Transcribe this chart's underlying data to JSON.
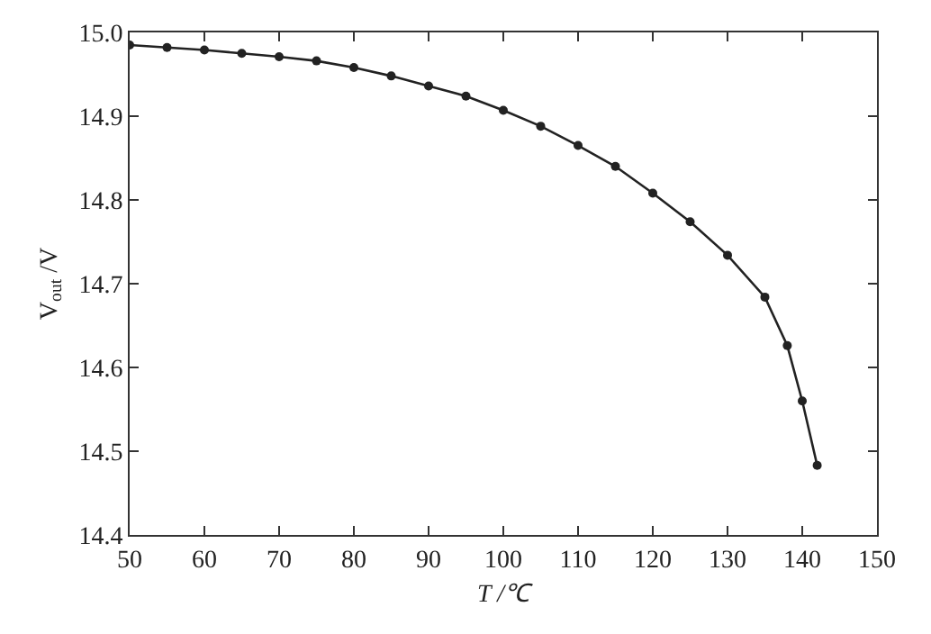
{
  "chart_data": {
    "type": "line",
    "xlabel": "T /℃",
    "ylabel": "V$_{out}$ /V",
    "x": [
      50,
      55,
      60,
      65,
      70,
      75,
      80,
      85,
      90,
      95,
      100,
      105,
      110,
      115,
      120,
      125,
      130,
      135,
      138,
      140,
      142
    ],
    "series": [
      {
        "color": "#222222",
        "values": [
          14.985,
          14.982,
          14.979,
          14.975,
          14.971,
          14.966,
          14.958,
          14.948,
          14.936,
          14.924,
          14.907,
          14.888,
          14.865,
          14.84,
          14.808,
          14.774,
          14.734,
          14.684,
          14.626,
          14.56,
          14.483
        ]
      }
    ],
    "xlim": [
      50,
      150
    ],
    "xticks": [
      50,
      60,
      70,
      80,
      90,
      100,
      110,
      120,
      130,
      140,
      150
    ],
    "ylim": [
      14.4,
      15.0
    ],
    "yticks": [
      {
        "value": 14.4,
        "label": "14.4"
      },
      {
        "value": 14.5,
        "label": "14.5"
      },
      {
        "value": 14.6,
        "label": "14.6"
      },
      {
        "value": 14.7,
        "label": "14.7"
      },
      {
        "value": 14.8,
        "label": "14.8"
      },
      {
        "value": 14.9,
        "label": "14.9"
      },
      {
        "value": 15.0,
        "label": "15.0"
      }
    ],
    "marker": "circle",
    "line_style": "solid"
  }
}
